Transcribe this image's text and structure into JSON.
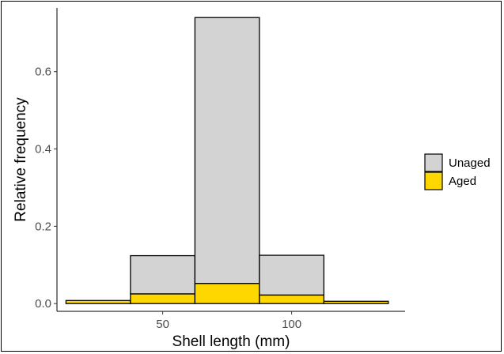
{
  "chart_data": {
    "type": "bar",
    "stacked": true,
    "xlabel": "Shell length (mm)",
    "ylabel": "Relative frequency",
    "xlim": [
      9,
      144
    ],
    "ylim": [
      -0.02,
      0.765
    ],
    "x_ticks": [
      50,
      100
    ],
    "y_ticks": [
      0.0,
      0.2,
      0.4,
      0.6
    ],
    "y_tick_labels": [
      "0.0",
      "0.2",
      "0.4",
      "0.6"
    ],
    "grid": false,
    "legend_position": "right",
    "bins": [
      [
        12.5,
        37.5
      ],
      [
        37.5,
        62.5
      ],
      [
        62.5,
        87.5
      ],
      [
        87.5,
        112.5
      ],
      [
        112.5,
        137.5
      ]
    ],
    "series": [
      {
        "name": "Aged",
        "color": "#FFD700",
        "values": [
          0.008,
          0.025,
          0.052,
          0.022,
          0.006
        ]
      },
      {
        "name": "Unaged",
        "color": "#D3D3D3",
        "values": [
          0.0,
          0.099,
          0.688,
          0.103,
          0.0
        ]
      }
    ],
    "legend": [
      {
        "name": "Unaged",
        "color": "#D3D3D3"
      },
      {
        "name": "Aged",
        "color": "#FFD700"
      }
    ]
  }
}
